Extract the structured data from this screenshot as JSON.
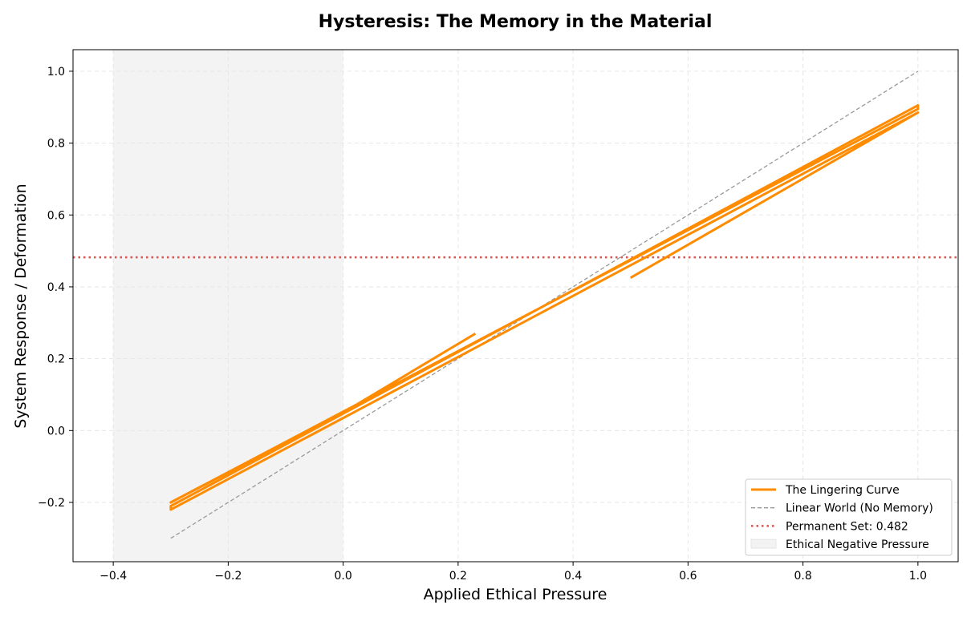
{
  "chart_data": {
    "type": "line",
    "title": "Hysteresis: The Memory in the Material",
    "xlabel": "Applied Ethical Pressure",
    "ylabel": "System Response / Deformation",
    "xlim": [
      -0.47,
      1.07
    ],
    "ylim": [
      -0.365,
      1.06
    ],
    "xticks": [
      -0.4,
      -0.2,
      0.0,
      0.2,
      0.4,
      0.6,
      0.8,
      1.0
    ],
    "xtick_labels": [
      "−0.4",
      "−0.2",
      "0.0",
      "0.2",
      "0.4",
      "0.6",
      "0.8",
      "1.0"
    ],
    "yticks": [
      -0.2,
      0.0,
      0.2,
      0.4,
      0.6,
      0.8,
      1.0
    ],
    "ytick_labels": [
      "−0.2",
      "0.0",
      "0.2",
      "0.4",
      "0.6",
      "0.8",
      "1.0"
    ],
    "grid": true,
    "legend_position": "bottom-right",
    "shaded_region": {
      "name": "Ethical Negative Pressure",
      "x": [
        -0.4,
        0.0
      ],
      "color": "#f3f3f3"
    },
    "series": [
      {
        "name": "The Lingering Curve",
        "style": "solid",
        "color": "#ff8c00",
        "points": [
          [
            0.5,
            0.425
          ],
          [
            1.0,
            0.885
          ],
          [
            -0.3,
            -0.22
          ],
          [
            -0.3,
            -0.21
          ],
          [
            1.0,
            0.905
          ],
          [
            1.0,
            0.895
          ],
          [
            -0.3,
            -0.2
          ],
          [
            0.0,
            0.05
          ],
          [
            0.23,
            0.27
          ]
        ]
      },
      {
        "name": "Linear World (No Memory)",
        "style": "dashed",
        "color": "#999999",
        "points": [
          [
            -0.3,
            -0.3
          ],
          [
            1.0,
            1.0
          ]
        ]
      },
      {
        "name": "Permanent Set: 0.482",
        "style": "dotted",
        "color": "#d9534f",
        "y": 0.482
      }
    ],
    "legend": [
      {
        "label": "The Lingering Curve",
        "kind": "solid",
        "color": "#ff8c00"
      },
      {
        "label": "Linear World (No Memory)",
        "kind": "dashed",
        "color": "#999999"
      },
      {
        "label": "Permanent Set: 0.482",
        "kind": "dotted",
        "color": "#d9534f"
      },
      {
        "label": "Ethical Negative Pressure",
        "kind": "patch",
        "color": "#f3f3f3"
      }
    ]
  }
}
